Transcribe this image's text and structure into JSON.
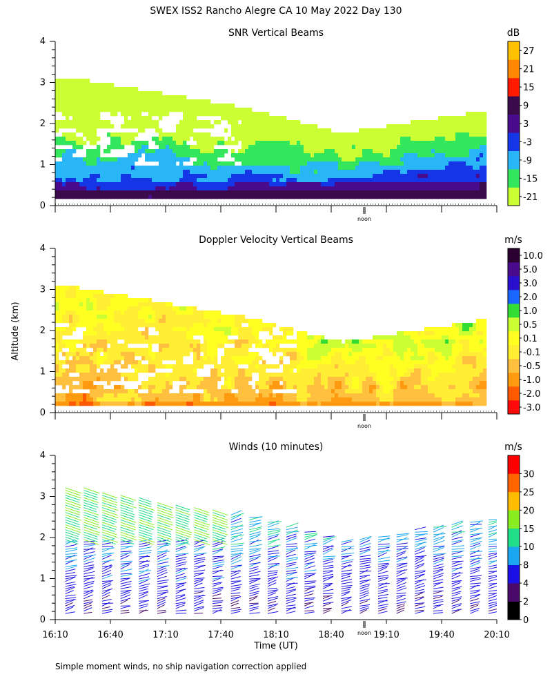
{
  "figure": {
    "title": "SWEX ISS2 Rancho Alegre CA  10 May 2022 Day 130",
    "ylabel": "Altitude (km)",
    "xlabel": "Time (UT)",
    "footnote": "Simple moment winds, no ship navigation correction applied",
    "noon_label": "noon"
  },
  "chart_data": [
    {
      "type": "heatmap",
      "title": "SNR Vertical Beams",
      "unit": "dB",
      "ylim": [
        0,
        4
      ],
      "yticks": [
        "0",
        "1",
        "2",
        "3",
        "4"
      ],
      "time_range": [
        "16:10",
        "20:10"
      ],
      "colorbar": {
        "labels": [
          "-21",
          "-15",
          "-9",
          "-3",
          "3",
          "9",
          "15",
          "21",
          "27"
        ],
        "colors": [
          "#ccff33",
          "#33e65c",
          "#29b6f6",
          "#1436e6",
          "#4a0a8c",
          "#3a0a4a",
          "#ff1a00",
          "#ff8800",
          "#ffc000"
        ]
      }
    },
    {
      "type": "heatmap",
      "title": "Doppler Velocity Vertical Beams",
      "unit": "m/s",
      "ylim": [
        0,
        4
      ],
      "yticks": [
        "0",
        "1",
        "2",
        "3",
        "4"
      ],
      "time_range": [
        "16:10",
        "20:10"
      ],
      "colorbar": {
        "labels": [
          "-3.0",
          "-2.0",
          "-1.0",
          "-0.5",
          "-0.1",
          "0.1",
          "0.5",
          "1.0",
          "2.0",
          "3.0",
          "5.0",
          "10.0"
        ],
        "colors": [
          "#ff0a0a",
          "#ff5a00",
          "#ff9a10",
          "#ffc040",
          "#ffee33",
          "#ffff22",
          "#ccff33",
          "#33dd33",
          "#1a66ff",
          "#2a10cc",
          "#4a0a8c",
          "#2a0030"
        ]
      }
    },
    {
      "type": "scatter",
      "subtype": "wind-barbs",
      "title": "Winds (10 minutes)",
      "unit": "m/s",
      "ylim": [
        0,
        4
      ],
      "yticks": [
        "0",
        "1",
        "2",
        "3",
        "4"
      ],
      "xticks": [
        "16:10",
        "16:40",
        "17:10",
        "17:40",
        "18:10",
        "18:40",
        "19:10",
        "19:40",
        "20:10"
      ],
      "colorbar": {
        "labels": [
          "0",
          "2",
          "4",
          "8",
          "10",
          "15",
          "20",
          "25",
          "30"
        ],
        "colors": [
          "#000000",
          "#4a0a6a",
          "#1a10e6",
          "#1aa6f0",
          "#22dd88",
          "#88ee22",
          "#ffbb00",
          "#ff6600",
          "#ff0000"
        ]
      }
    }
  ]
}
